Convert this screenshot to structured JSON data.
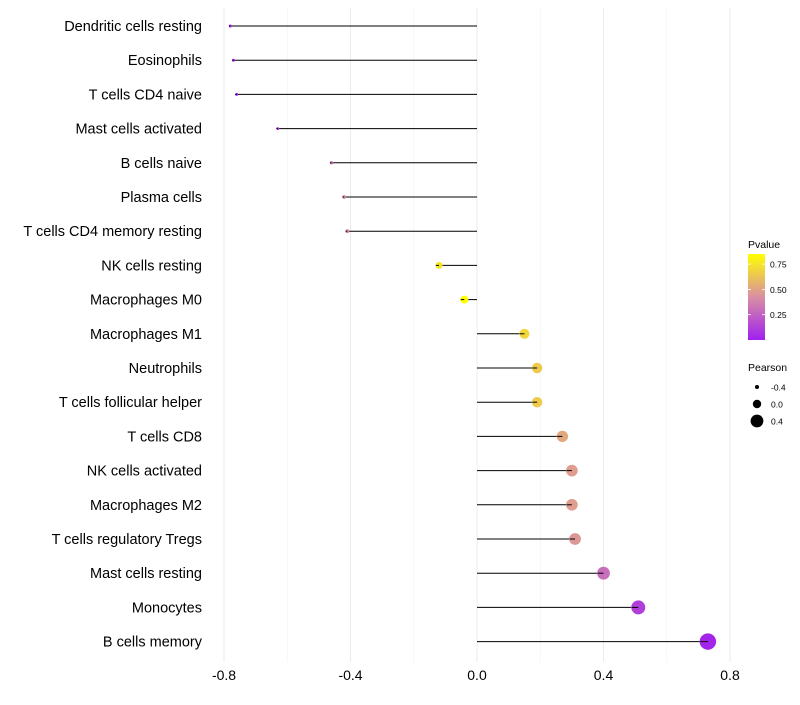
{
  "chart_data": {
    "type": "lollipop",
    "title": "",
    "xlabel": "",
    "ylabel": "",
    "xlim": [
      -0.8,
      0.8
    ],
    "x_ticks": [
      -0.8,
      -0.4,
      0.0,
      0.4,
      0.8
    ],
    "x_tick_labels": [
      "-0.8",
      "-0.4",
      "0.0",
      "0.4",
      "0.8"
    ],
    "grid": "vertical major and minor lines only",
    "baseline": 0.0,
    "categories": [
      "Dendritic cells resting",
      "Eosinophils",
      "T cells CD4 naive",
      "Mast cells activated",
      "B cells naive",
      "Plasma cells",
      "T cells CD4 memory resting",
      "NK cells resting",
      "Macrophages M0",
      "Macrophages M1",
      "Neutrophils",
      "T cells follicular helper",
      "T cells CD8",
      "NK cells activated",
      "Macrophages M2",
      "T cells regulatory  Tregs ",
      "Mast cells resting",
      "Monocytes",
      "B cells memory"
    ],
    "values": [
      -0.78,
      -0.77,
      -0.76,
      -0.63,
      -0.46,
      -0.42,
      -0.41,
      -0.12,
      -0.04,
      0.15,
      0.19,
      0.19,
      0.27,
      0.3,
      0.3,
      0.31,
      0.4,
      0.51,
      0.73
    ],
    "pvalues": [
      0.02,
      0.02,
      0.02,
      0.1,
      0.3,
      0.38,
      0.4,
      0.75,
      0.95,
      0.7,
      0.65,
      0.65,
      0.52,
      0.48,
      0.48,
      0.46,
      0.3,
      0.12,
      0.02
    ],
    "legend_color": {
      "title": "Pvalue",
      "ticks": [
        0.25,
        0.5,
        0.75
      ],
      "tick_labels": [
        "0.25",
        "0.50",
        "0.75"
      ],
      "range": [
        0.0,
        0.85
      ],
      "low_color": "#a020f0",
      "mid_color": "#d98fa3",
      "high_color": "#ffff00"
    },
    "legend_size": {
      "title": "Pearson",
      "values": [
        -0.4,
        0.0,
        0.4
      ],
      "labels": [
        "-0.4",
        "0.0",
        "0.4"
      ]
    },
    "legend_position": "right"
  }
}
